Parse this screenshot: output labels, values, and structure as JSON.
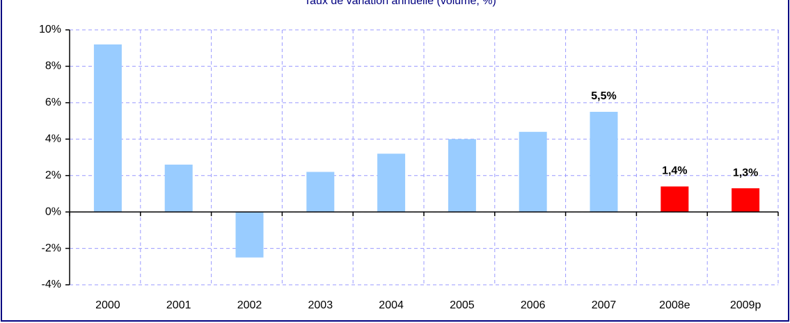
{
  "chart_data": {
    "type": "bar",
    "title": "Taux de variation annuelle (volume, %)",
    "categories": [
      "2000",
      "2001",
      "2002",
      "2003",
      "2004",
      "2005",
      "2006",
      "2007",
      "2008e",
      "2009p"
    ],
    "values": [
      9.2,
      2.6,
      -2.5,
      2.2,
      3.2,
      4.0,
      4.4,
      5.5,
      1.4,
      1.3
    ],
    "value_labels": [
      null,
      null,
      null,
      null,
      null,
      null,
      null,
      "5,5%",
      "1,4%",
      "1,3%"
    ],
    "colors": [
      "#99ccff",
      "#99ccff",
      "#99ccff",
      "#99ccff",
      "#99ccff",
      "#99ccff",
      "#99ccff",
      "#99ccff",
      "#ff0000",
      "#ff0000"
    ],
    "ylim": [
      -4,
      10
    ],
    "yticks": [
      {
        "value": -4,
        "label": "-4%"
      },
      {
        "value": -2,
        "label": "-2%"
      },
      {
        "value": 0,
        "label": "0%"
      },
      {
        "value": 2,
        "label": "2%"
      },
      {
        "value": 4,
        "label": "4%"
      },
      {
        "value": 6,
        "label": "6%"
      },
      {
        "value": 8,
        "label": "8%"
      },
      {
        "value": 10,
        "label": "10%"
      }
    ],
    "grid": true
  }
}
